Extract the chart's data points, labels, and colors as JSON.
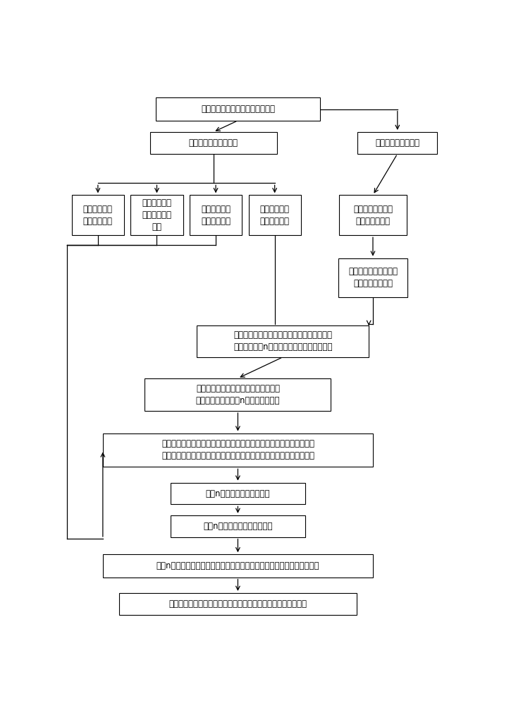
{
  "figsize": [
    7.49,
    10.0
  ],
  "dpi": 100,
  "boxes": {
    "start": [
      0.42,
      0.955,
      0.4,
      0.042,
      "选定楼层动力响应时程作为目标波"
    ],
    "analyze": [
      0.36,
      0.893,
      0.31,
      0.04,
      "分析目标波的波形特征"
    ],
    "resp_spec": [
      0.81,
      0.893,
      0.195,
      0.04,
      "计算目标波的反应谱"
    ],
    "energy": [
      0.078,
      0.76,
      0.128,
      0.074,
      "计算目标波的\n能量分布曲线"
    ],
    "envelope": [
      0.222,
      0.76,
      0.128,
      0.074,
      "计算目标波的\n绝对值强度包\n络线"
    ],
    "phase": [
      0.366,
      0.76,
      0.128,
      0.074,
      "计算目标波的\n傅立叶相位谱"
    ],
    "amplitude": [
      0.51,
      0.76,
      0.128,
      0.074,
      "计算目标波的\n傅立叶幅值谱"
    ],
    "tgt_spec": [
      0.75,
      0.76,
      0.165,
      0.074,
      "基于不确定性人工\n处理得到目标谱"
    ],
    "fourier_tgt": [
      0.75,
      0.645,
      0.17,
      0.072,
      "按公式计算与目标谱对\n应的傅立叶幅值谱"
    ],
    "combine": [
      0.53,
      0.528,
      0.42,
      0.058,
      "将目标波的幅值谱和由目标谱得到的近似幅值\n谱线性组合得n组初始人工波的傅立叶幅值谱"
    ],
    "gen_waves": [
      0.42,
      0.43,
      0.455,
      0.06,
      "以初始人工波傅立叶幅值谱、目标波相\n位谱为初始条件生成n组初始人工波。"
    ],
    "iterate": [
      0.42,
      0.328,
      0.66,
      0.062,
      "基于目标谱对多条初始人工波进行反应谱迭代计算，直至计算反应谱与\n目标谱偏差满足要求，这一过程中以目标波的强度包络线为控制条件。"
    ],
    "n_waves": [
      0.42,
      0.248,
      0.33,
      0.04,
      "求得n条待选人工波时程曲线"
    ],
    "n_energy": [
      0.42,
      0.188,
      0.33,
      0.04,
      "计算n条待选人工波的能量曲线"
    ],
    "compare": [
      0.42,
      0.115,
      0.66,
      0.042,
      "比较n条待选波与目标波的能量曲线间和时程曲线间的相关系数，进行优选"
    ],
    "recommend": [
      0.42,
      0.045,
      0.58,
      0.04,
      "基于与目标波能量曲线和时程曲线相关性的大小推荐人工地震波"
    ]
  },
  "bold_segments": {
    "start": [
      [
        "选定楼层动力响应时程作为",
        "目标波"
      ]
    ],
    "analyze": [
      [
        "分析",
        "目标波",
        "的波形特征"
      ]
    ],
    "tgt_spec": [
      [
        "基于不确定性人工\n处理得到",
        "目标谱"
      ]
    ],
    "fourier_tgt": [
      [
        "按公式计算与",
        "目标谱",
        "对\n应的傅立叶幅值谱"
      ]
    ]
  }
}
